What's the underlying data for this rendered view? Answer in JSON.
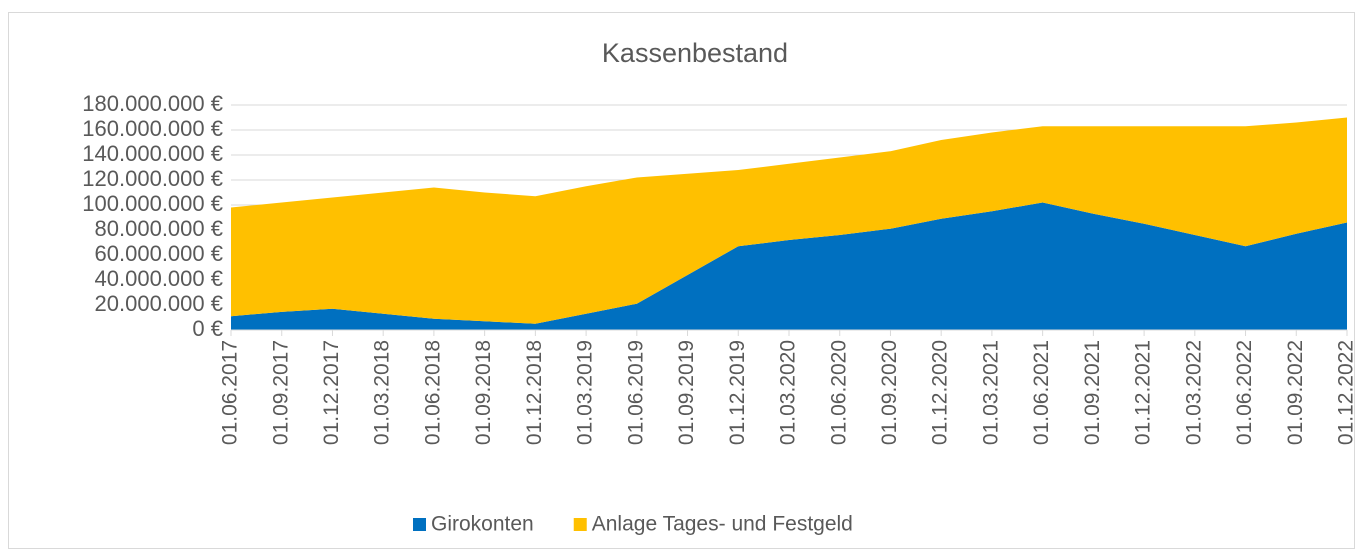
{
  "chart_data": {
    "type": "area",
    "stacked": true,
    "title": "Kassenbestand",
    "categories": [
      "01.06.2017",
      "01.09.2017",
      "01.12.2017",
      "01.03.2018",
      "01.06.2018",
      "01.09.2018",
      "01.12.2018",
      "01.03.2019",
      "01.06.2019",
      "01.09.2019",
      "01.12.2019",
      "01.03.2020",
      "01.06.2020",
      "01.09.2020",
      "01.12.2020",
      "01.03.2021",
      "01.06.2021",
      "01.09.2021",
      "01.12.2021",
      "01.03.2022",
      "01.06.2022",
      "01.09.2022",
      "01.12.2022"
    ],
    "series": [
      {
        "name": "Girokonten",
        "color": "#0070c0",
        "values": [
          11000000,
          14500000,
          17000000,
          13000000,
          9000000,
          7000000,
          5000000,
          13000000,
          21000000,
          44000000,
          67000000,
          72000000,
          76000000,
          81000000,
          89000000,
          95000000,
          102000000,
          93000000,
          85000000,
          76000000,
          67000000,
          77000000,
          86000000
        ]
      },
      {
        "name": "Anlage Tages- und Festgeld",
        "color": "#ffc000",
        "values": [
          87000000,
          87500000,
          89000000,
          97000000,
          105000000,
          103000000,
          102000000,
          102000000,
          101000000,
          81000000,
          61000000,
          61000000,
          62000000,
          62000000,
          63000000,
          63000000,
          61000000,
          70000000,
          78000000,
          87000000,
          96000000,
          89000000,
          84000000
        ]
      }
    ],
    "ylim": [
      0,
      180000000
    ],
    "yticks": [
      {
        "value": 0,
        "label": "0 €"
      },
      {
        "value": 20000000,
        "label": "20.000.000 €"
      },
      {
        "value": 40000000,
        "label": "40.000.000 €"
      },
      {
        "value": 60000000,
        "label": "60.000.000 €"
      },
      {
        "value": 80000000,
        "label": "80.000.000 €"
      },
      {
        "value": 100000000,
        "label": "100.000.000 €"
      },
      {
        "value": 120000000,
        "label": "120.000.000 €"
      },
      {
        "value": 140000000,
        "label": "140.000.000 €"
      },
      {
        "value": 160000000,
        "label": "160.000.000 €"
      },
      {
        "value": 180000000,
        "label": "180.000.000 €"
      }
    ],
    "grid": true,
    "legend": "bottom"
  }
}
